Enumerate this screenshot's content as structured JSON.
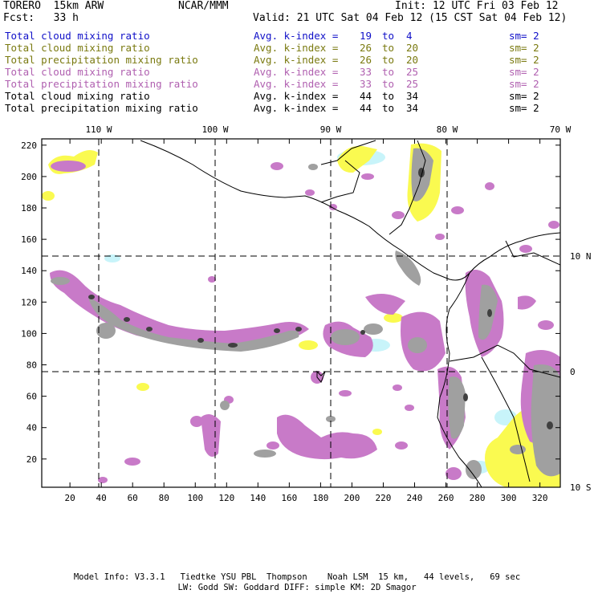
{
  "header": {
    "model": "TORERO  15km ARW",
    "center": "NCAR/MMM",
    "init": "Init: 12 UTC Fri 03 Feb 12",
    "fcst": "Fcst:   33 h",
    "valid": "Valid: 21 UTC Sat 04 Feb 12 (15 CST Sat 04 Feb 12)"
  },
  "legend": [
    {
      "field": "Total cloud mixing ratio",
      "kindex": "Avg. k-index =",
      "from": "19",
      "to_word": "to",
      "to": "4",
      "sm": "sm= 2",
      "color": "#1010c8"
    },
    {
      "field": "Total cloud mixing ratio",
      "kindex": "Avg. k-index =",
      "from": "26",
      "to_word": "to",
      "to": "20",
      "sm": "sm= 2",
      "color": "#7a7a10"
    },
    {
      "field": "Total precipitation mixing ratio",
      "kindex": "Avg. k-index =",
      "from": "26",
      "to_word": "to",
      "to": "20",
      "sm": "sm= 2",
      "color": "#7a7a10"
    },
    {
      "field": "Total cloud mixing ratio",
      "kindex": "Avg. k-index =",
      "from": "33",
      "to_word": "to",
      "to": "25",
      "sm": "sm= 2",
      "color": "#b060b0"
    },
    {
      "field": "Total precipitation mixing ratio",
      "kindex": "Avg. k-index =",
      "from": "33",
      "to_word": "to",
      "to": "25",
      "sm": "sm= 2",
      "color": "#b060b0"
    },
    {
      "field": "Total cloud mixing ratio",
      "kindex": "Avg. k-index =",
      "from": "44",
      "to_word": "to",
      "to": "34",
      "sm": "sm= 2",
      "color": "#000000"
    },
    {
      "field": "Total precipitation mixing ratio",
      "kindex": "Avg. k-index =",
      "from": "44",
      "to_word": "to",
      "to": "34",
      "sm": "sm= 2",
      "color": "#000000"
    }
  ],
  "map": {
    "x_grid_ticks": [
      "20",
      "40",
      "60",
      "80",
      "100",
      "120",
      "140",
      "160",
      "180",
      "200",
      "220",
      "240",
      "260",
      "280",
      "300",
      "320"
    ],
    "y_grid_ticks": [
      "20",
      "40",
      "60",
      "80",
      "100",
      "120",
      "140",
      "160",
      "180",
      "200",
      "220"
    ],
    "lon_labels": [
      "110 W",
      "100 W",
      "90 W",
      "80 W",
      "70 W"
    ],
    "lat_labels": [
      "10 N",
      "0",
      "10 S"
    ],
    "colors": {
      "light_cyan": "#c8f4fa",
      "yellow": "#fafa50",
      "magenta": "#c87ac8",
      "gray": "#a0a0a0",
      "dark_gray": "#404040",
      "coast": "#000000"
    }
  },
  "footer": {
    "line1": "Model Info: V3.3.1   Tiedtke YSU PBL  Thompson    Noah LSM  15 km,   44 levels,   69 sec",
    "line2": "LW: Godd SW: Goddard DIFF: simple KM: 2D Smagor"
  }
}
